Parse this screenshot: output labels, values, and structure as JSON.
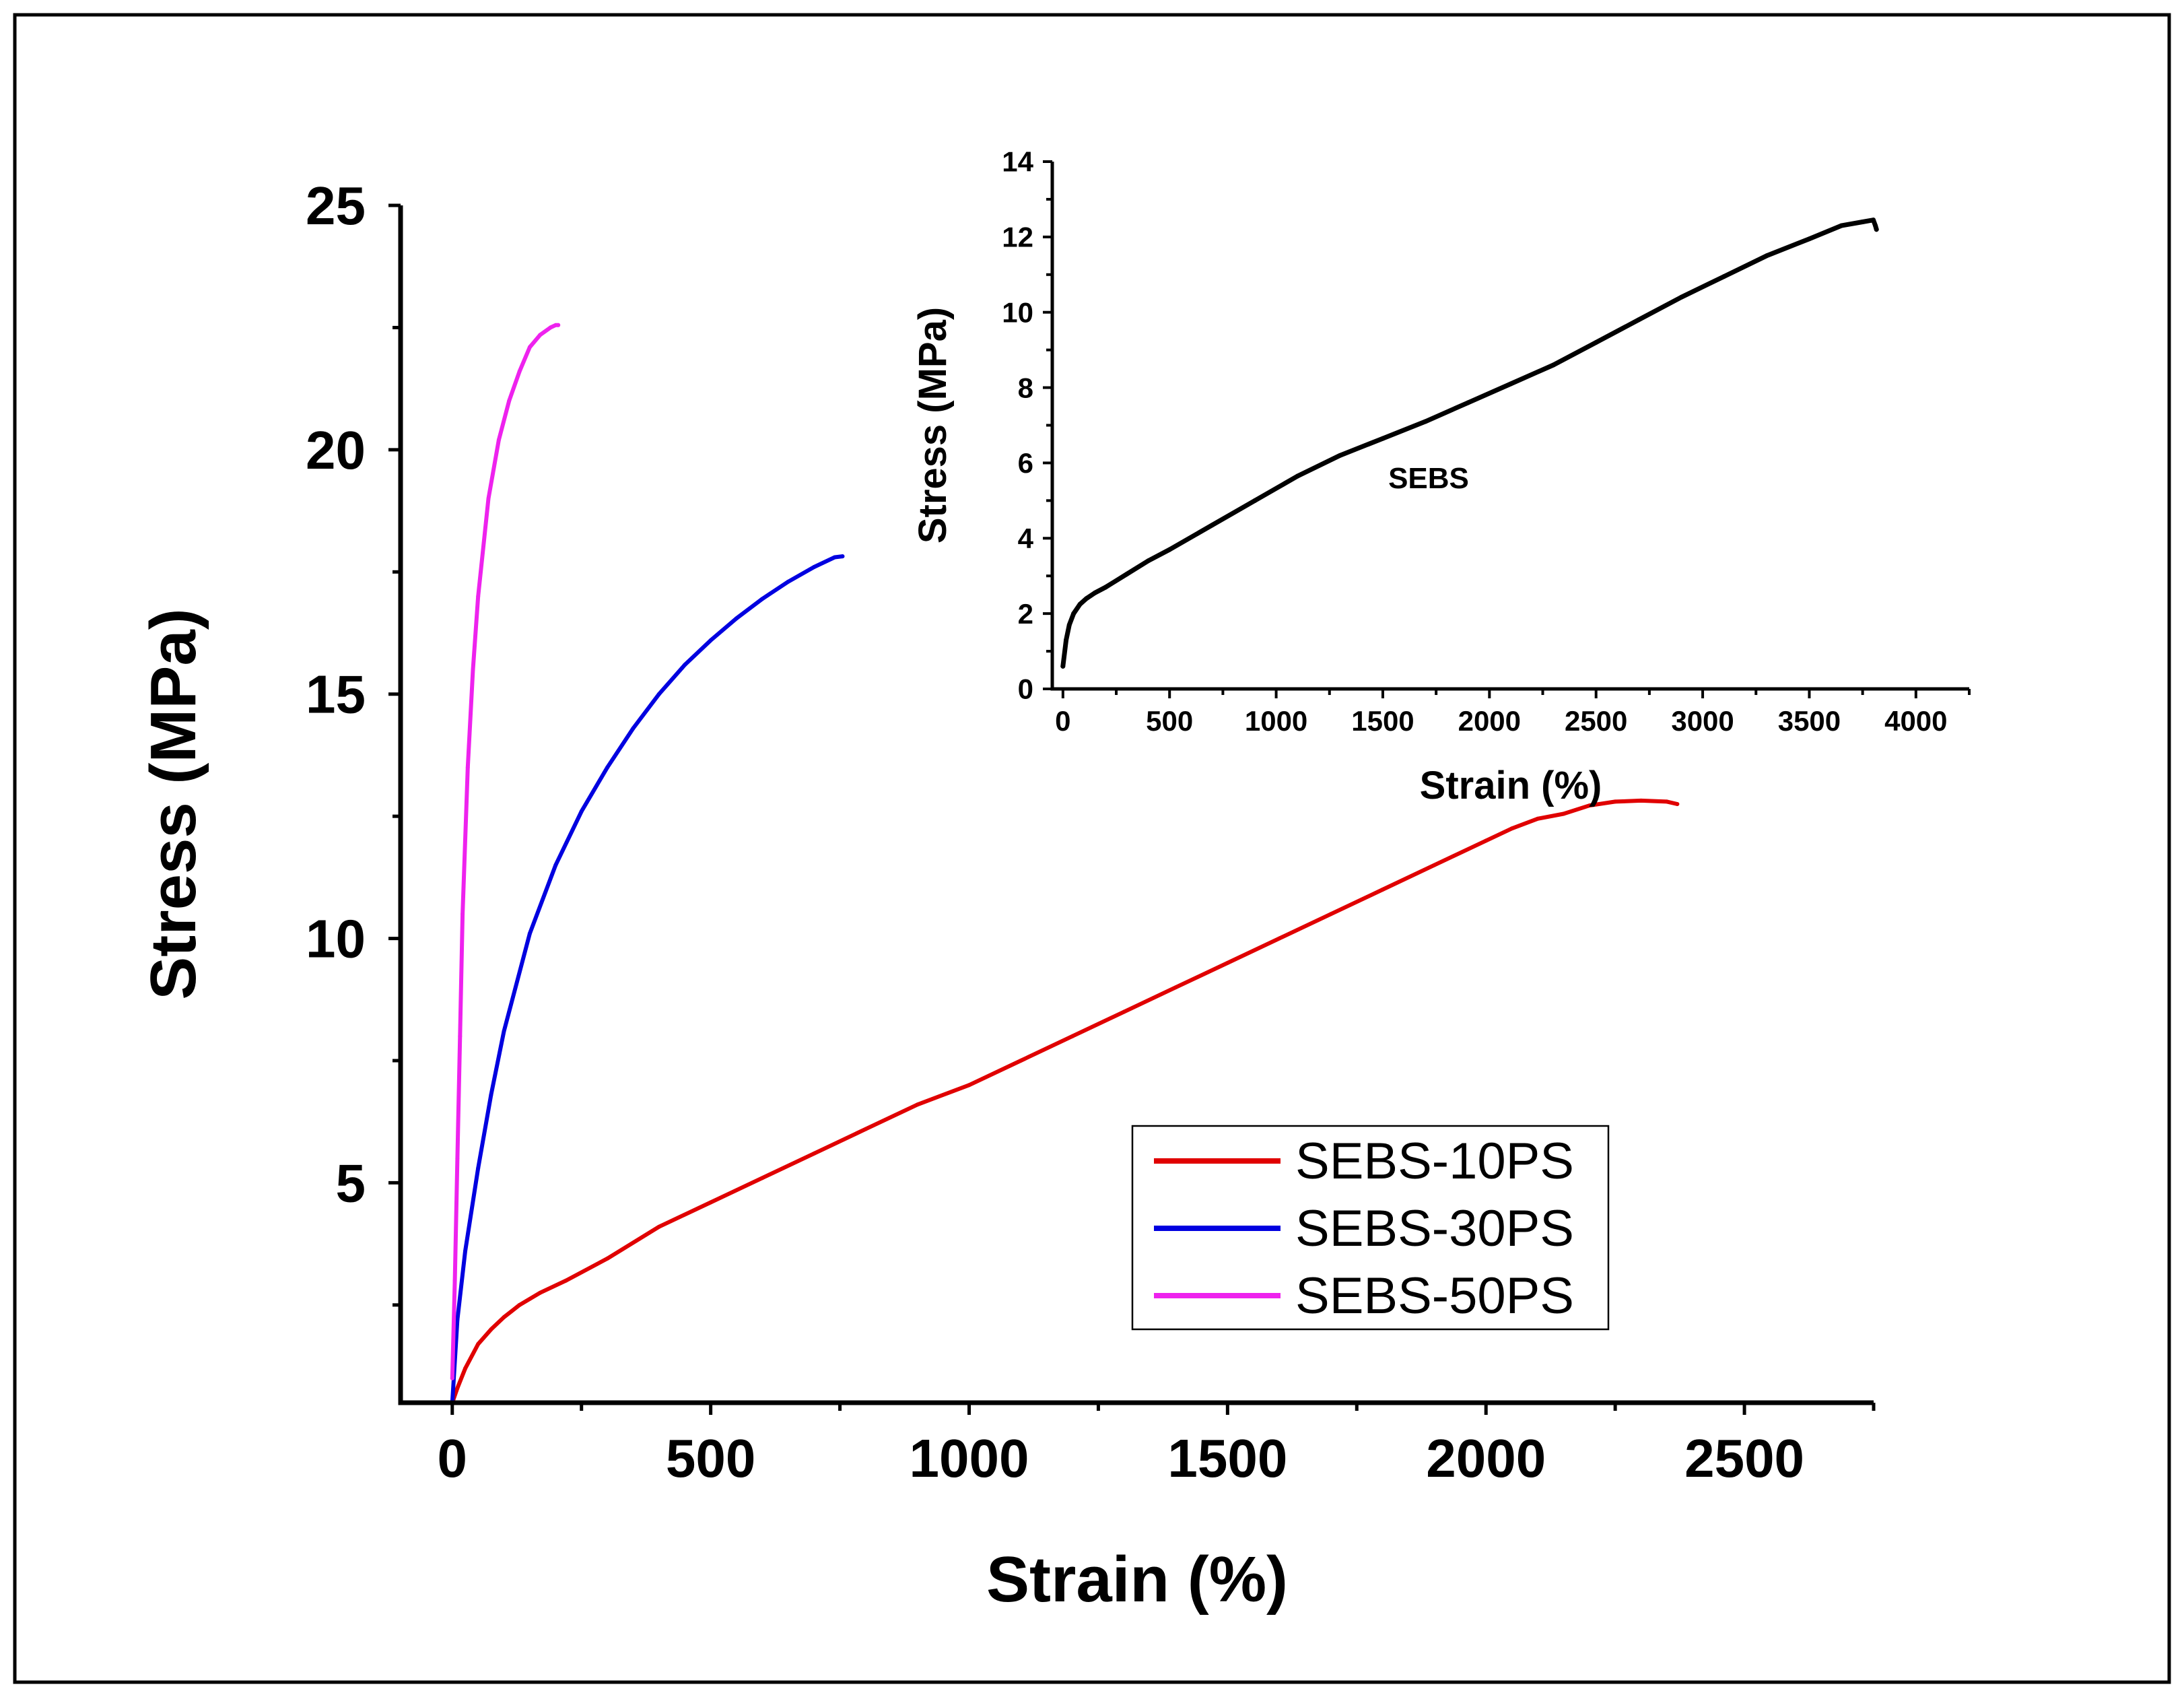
{
  "chart_data": [
    {
      "id": "main",
      "type": "line",
      "title": "",
      "xlabel": "Strain (%)",
      "ylabel": "Stress (MPa)",
      "xlim": [
        -100,
        2750
      ],
      "ylim": [
        0.5,
        25
      ],
      "xticks": [
        0,
        500,
        1000,
        1500,
        2000,
        2500
      ],
      "yticks": [
        5,
        10,
        15,
        20,
        25
      ],
      "grid": false,
      "legend_position": "bottom-right",
      "series": [
        {
          "name": "SEBS-10PS",
          "color": "#e00000",
          "x": [
            0,
            10,
            25,
            50,
            75,
            100,
            130,
            170,
            220,
            300,
            400,
            500,
            600,
            700,
            800,
            900,
            1000,
            1100,
            1200,
            1300,
            1400,
            1500,
            1600,
            1700,
            1800,
            1900,
            2000,
            2050,
            2100,
            2150,
            2200,
            2250,
            2300,
            2350,
            2370
          ],
          "y": [
            0.5,
            0.8,
            1.2,
            1.7,
            2.0,
            2.25,
            2.5,
            2.75,
            3.0,
            3.45,
            4.1,
            4.6,
            5.1,
            5.6,
            6.1,
            6.6,
            7.0,
            7.5,
            8.0,
            8.5,
            9.0,
            9.5,
            10.0,
            10.5,
            11.0,
            11.5,
            12.0,
            12.25,
            12.45,
            12.55,
            12.72,
            12.8,
            12.82,
            12.8,
            12.75
          ]
        },
        {
          "name": "SEBS-30PS",
          "color": "#0000e0",
          "x": [
            0,
            10,
            25,
            50,
            75,
            100,
            150,
            200,
            250,
            300,
            350,
            400,
            450,
            500,
            550,
            600,
            650,
            700,
            740,
            755
          ],
          "y": [
            0.5,
            2.2,
            3.6,
            5.3,
            6.8,
            8.1,
            10.1,
            11.5,
            12.6,
            13.5,
            14.3,
            15.0,
            15.6,
            16.1,
            16.55,
            16.95,
            17.3,
            17.6,
            17.8,
            17.82
          ]
        },
        {
          "name": "SEBS-50PS",
          "color": "#ee22ee",
          "x": [
            0,
            5,
            10,
            15,
            20,
            30,
            40,
            50,
            70,
            90,
            110,
            130,
            150,
            170,
            190,
            200,
            205
          ],
          "y": [
            1.0,
            3.0,
            5.5,
            8.0,
            10.5,
            13.5,
            15.5,
            17.0,
            19.0,
            20.2,
            21.0,
            21.6,
            22.1,
            22.35,
            22.5,
            22.55,
            22.55
          ]
        }
      ]
    },
    {
      "id": "inset",
      "type": "line",
      "title": "",
      "annotation": "SEBS",
      "xlabel": "Strain (%)",
      "ylabel": "Stress (MPa)",
      "xlim": [
        -50,
        4250
      ],
      "ylim": [
        0,
        14
      ],
      "xticks": [
        0,
        500,
        1000,
        1500,
        2000,
        2500,
        3000,
        3500,
        4000
      ],
      "yticks": [
        0,
        2,
        4,
        6,
        8,
        10,
        12,
        14
      ],
      "grid": false,
      "series": [
        {
          "name": "SEBS",
          "color": "#000000",
          "x": [
            0,
            15,
            30,
            50,
            80,
            110,
            150,
            200,
            300,
            400,
            500,
            700,
            900,
            1100,
            1300,
            1500,
            1700,
            1900,
            2100,
            2300,
            2500,
            2700,
            2900,
            3100,
            3300,
            3500,
            3650,
            3750,
            3800,
            3810,
            3815
          ],
          "y": [
            0.6,
            1.3,
            1.7,
            2.0,
            2.25,
            2.4,
            2.55,
            2.7,
            3.05,
            3.4,
            3.7,
            4.35,
            5.0,
            5.65,
            6.2,
            6.65,
            7.1,
            7.6,
            8.1,
            8.6,
            9.2,
            9.8,
            10.4,
            10.95,
            11.5,
            11.95,
            12.3,
            12.4,
            12.45,
            12.3,
            12.2
          ]
        }
      ]
    }
  ]
}
